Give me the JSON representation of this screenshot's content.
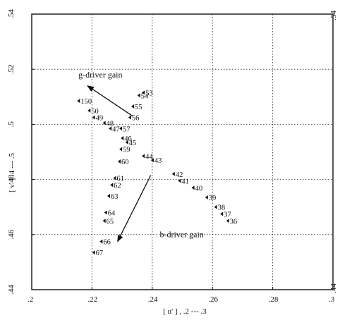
{
  "chart_data": {
    "type": "scatter",
    "title": "",
    "xlabel": "[ u' ]  , .2 --- .3",
    "ylabel": "[ v' ]  .4 --- .5",
    "xlim": [
      0.2,
      0.3
    ],
    "ylim": [
      0.44,
      0.54
    ],
    "x_ticks": [
      ".2",
      ".22",
      ".24",
      ".26",
      ".28",
      ".3"
    ],
    "y_ticks": [
      ".54",
      ".52",
      ".5",
      ".48",
      ".46",
      ".44"
    ],
    "y_tick_values": [
      0.54,
      0.52,
      0.5,
      0.48,
      0.46,
      0.44
    ],
    "y_side_labels": [
      ".54",
      ".44"
    ],
    "grid": "dotted",
    "points": [
      {
        "label": "150",
        "x": 0.216,
        "y": 0.5085
      },
      {
        "label": "50",
        "x": 0.2195,
        "y": 0.505
      },
      {
        "label": "49",
        "x": 0.221,
        "y": 0.5025
      },
      {
        "label": "48",
        "x": 0.2245,
        "y": 0.5005
      },
      {
        "label": "47",
        "x": 0.2265,
        "y": 0.4985
      },
      {
        "label": "46",
        "x": 0.2305,
        "y": 0.495
      },
      {
        "label": "45",
        "x": 0.232,
        "y": 0.4935
      },
      {
        "label": "59",
        "x": 0.23,
        "y": 0.491
      },
      {
        "label": "60",
        "x": 0.2295,
        "y": 0.4865
      },
      {
        "label": "61",
        "x": 0.228,
        "y": 0.4805
      },
      {
        "label": "62",
        "x": 0.227,
        "y": 0.478
      },
      {
        "label": "63",
        "x": 0.226,
        "y": 0.474
      },
      {
        "label": "64",
        "x": 0.225,
        "y": 0.468
      },
      {
        "label": "65",
        "x": 0.2245,
        "y": 0.465
      },
      {
        "label": "66",
        "x": 0.2235,
        "y": 0.4575
      },
      {
        "label": "67",
        "x": 0.221,
        "y": 0.4535
      },
      {
        "label": "53",
        "x": 0.2375,
        "y": 0.5115
      },
      {
        "label": "54",
        "x": 0.236,
        "y": 0.5105
      },
      {
        "label": "55",
        "x": 0.234,
        "y": 0.5065
      },
      {
        "label": "56",
        "x": 0.233,
        "y": 0.5025
      },
      {
        "label": "57",
        "x": 0.23,
        "y": 0.4985
      },
      {
        "label": "44",
        "x": 0.2375,
        "y": 0.4885
      },
      {
        "label": "43",
        "x": 0.2405,
        "y": 0.487
      },
      {
        "label": "42",
        "x": 0.2475,
        "y": 0.482
      },
      {
        "label": "41",
        "x": 0.2495,
        "y": 0.4795
      },
      {
        "label": "40",
        "x": 0.254,
        "y": 0.477
      },
      {
        "label": "39",
        "x": 0.2585,
        "y": 0.4735
      },
      {
        "label": "38",
        "x": 0.2615,
        "y": 0.47
      },
      {
        "label": "37",
        "x": 0.2635,
        "y": 0.4675
      },
      {
        "label": "36",
        "x": 0.2655,
        "y": 0.465
      }
    ],
    "annotations": [
      {
        "text": "g-driver gain",
        "x": 0.2155,
        "y": 0.517
      },
      {
        "text": "b-driver gain",
        "x": 0.2425,
        "y": 0.459
      }
    ],
    "arrows": [
      {
        "name": "g-driver-arrow",
        "from": [
          0.2335,
          0.503
        ],
        "to": [
          0.2185,
          0.514
        ]
      },
      {
        "name": "b-driver-arrow",
        "from": [
          0.2395,
          0.4815
        ],
        "to": [
          0.2285,
          0.4575
        ]
      }
    ]
  }
}
